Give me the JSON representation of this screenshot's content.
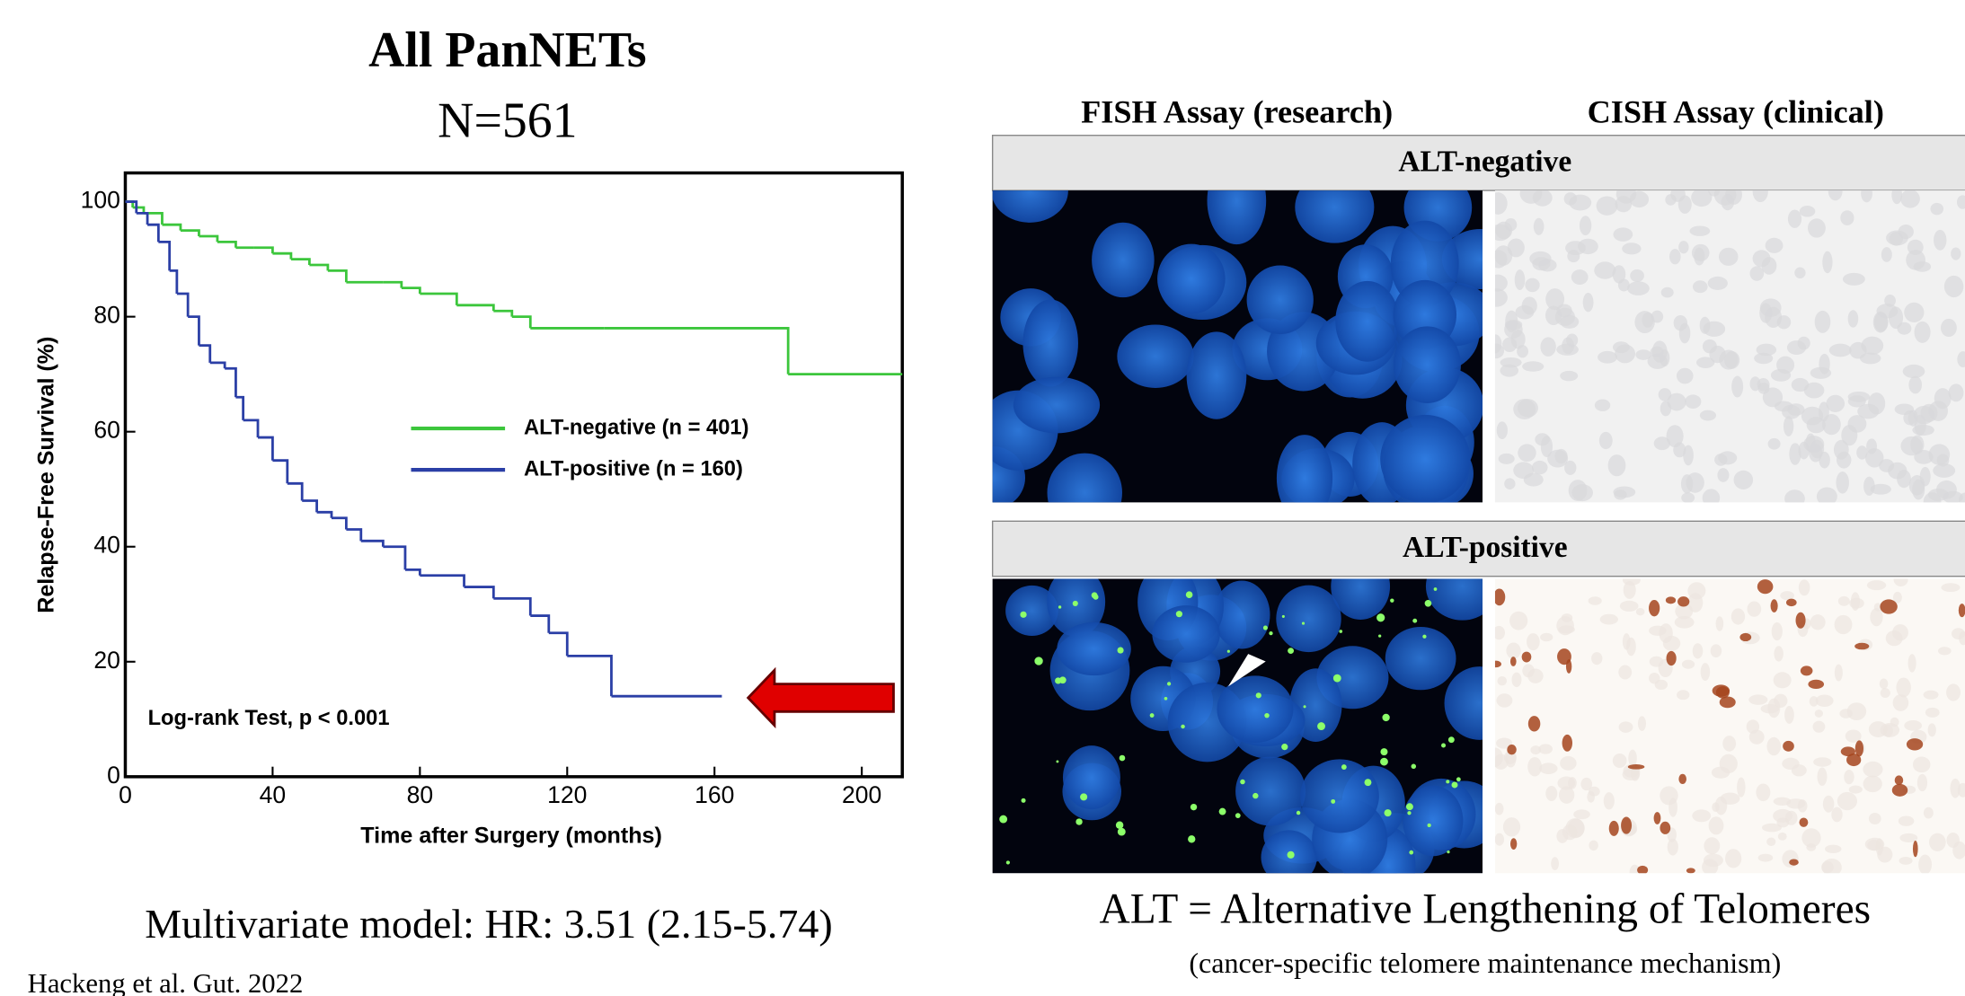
{
  "title": "All PanNETs",
  "subtitle": "N=561",
  "chart_data": {
    "type": "line",
    "step": true,
    "x_label": "Time after Surgery (months)",
    "y_label": "Relapse-Free Survival (%)",
    "xlim": [
      0,
      211
    ],
    "ylim": [
      0,
      105
    ],
    "xticks": [
      0,
      40,
      80,
      120,
      160,
      200
    ],
    "yticks": [
      0,
      20,
      40,
      60,
      80,
      100
    ],
    "annotation": "Log-rank Test, p < 0.001",
    "series": [
      {
        "name": "ALT-negative (n = 401)",
        "color": "#3cc63c",
        "x": [
          0,
          2,
          5,
          10,
          15,
          20,
          25,
          30,
          35,
          40,
          45,
          50,
          55,
          60,
          70,
          75,
          80,
          90,
          100,
          105,
          110,
          130,
          180,
          211
        ],
        "values": [
          100,
          99,
          98,
          96,
          95,
          94,
          93,
          92,
          92,
          91,
          90,
          89,
          88,
          86,
          86,
          85,
          84,
          82,
          81,
          80,
          78,
          78,
          70,
          70
        ]
      },
      {
        "name": "ALT-positive (n = 160)",
        "color": "#2b3fa6",
        "x": [
          0,
          3,
          6,
          9,
          12,
          14,
          17,
          20,
          23,
          27,
          30,
          32,
          36,
          40,
          44,
          48,
          52,
          56,
          60,
          64,
          70,
          76,
          80,
          92,
          100,
          110,
          115,
          120,
          132,
          162
        ],
        "values": [
          100,
          98,
          96,
          93,
          88,
          84,
          80,
          75,
          72,
          71,
          66,
          62,
          59,
          55,
          51,
          48,
          46,
          45,
          43,
          41,
          40,
          36,
          35,
          33,
          31,
          28,
          25,
          21,
          14,
          14
        ]
      }
    ]
  },
  "model_text": "Multivariate model: HR: 3.51 (2.15-5.74)",
  "citation": "Hackeng et al. Gut. 2022",
  "panels": {
    "columns": [
      "FISH Assay (research)",
      "CISH Assay (clinical)"
    ],
    "rows": [
      "ALT-negative",
      "ALT-positive"
    ]
  },
  "definition": {
    "title": "ALT = Alternative Lengthening of Telomeres",
    "subtitle": "(cancer-specific telomere maintenance mechanism)"
  }
}
